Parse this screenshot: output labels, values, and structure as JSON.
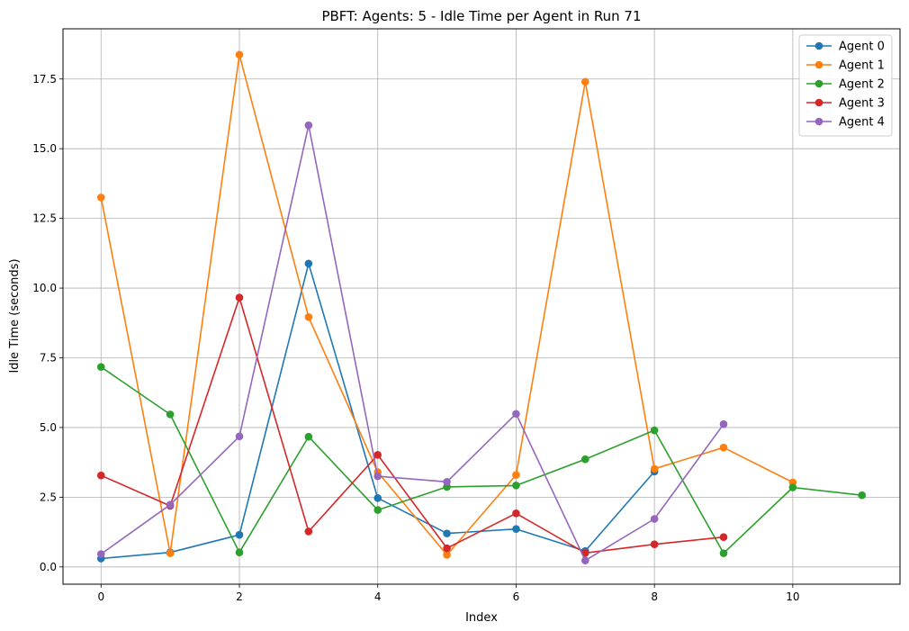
{
  "chart_data": {
    "type": "line",
    "title": "PBFT: Agents: 5 - Idle Time per Agent in Run 71",
    "xlabel": "Index",
    "ylabel": "Idle Time (seconds)",
    "xlim": [
      -0.55,
      11.55
    ],
    "ylim": [
      -0.62,
      19.3
    ],
    "xticks": [
      0,
      2,
      4,
      6,
      8,
      10
    ],
    "yticks": [
      0.0,
      2.5,
      5.0,
      7.5,
      10.0,
      12.5,
      15.0,
      17.5
    ],
    "ytick_labels": [
      "0.0",
      "2.5",
      "5.0",
      "7.5",
      "10.0",
      "12.5",
      "15.0",
      "17.5"
    ],
    "grid": true,
    "legend_position": "top-right",
    "series": [
      {
        "name": "Agent 0",
        "color": "#1f77b4",
        "x": [
          0,
          1,
          2,
          3,
          4,
          5,
          6,
          7,
          8
        ],
        "values": [
          0.3,
          0.52,
          1.15,
          10.88,
          2.47,
          1.2,
          1.36,
          0.57,
          3.42
        ]
      },
      {
        "name": "Agent 1",
        "color": "#ff7f0e",
        "x": [
          0,
          1,
          2,
          3,
          4,
          5,
          6,
          7,
          8,
          9,
          10
        ],
        "values": [
          13.25,
          0.49,
          18.37,
          8.96,
          3.4,
          0.43,
          3.3,
          17.4,
          3.52,
          4.28,
          3.03
        ]
      },
      {
        "name": "Agent 2",
        "color": "#2ca02c",
        "x": [
          0,
          1,
          2,
          3,
          4,
          5,
          6,
          7,
          8,
          9,
          10,
          11
        ],
        "values": [
          7.17,
          5.47,
          0.52,
          4.67,
          2.04,
          2.87,
          2.92,
          3.86,
          4.9,
          0.49,
          2.85,
          2.57
        ]
      },
      {
        "name": "Agent 3",
        "color": "#d62728",
        "x": [
          0,
          1,
          2,
          3,
          4,
          5,
          6,
          7,
          8,
          9
        ],
        "values": [
          3.28,
          2.19,
          9.66,
          1.27,
          4.02,
          0.67,
          1.92,
          0.5,
          0.81,
          1.07
        ]
      },
      {
        "name": "Agent 4",
        "color": "#9467bd",
        "x": [
          0,
          1,
          2,
          3,
          4,
          5,
          6,
          7,
          8,
          9
        ],
        "values": [
          0.46,
          2.23,
          4.68,
          15.84,
          3.25,
          3.05,
          5.49,
          0.23,
          1.72,
          5.12
        ]
      }
    ]
  }
}
